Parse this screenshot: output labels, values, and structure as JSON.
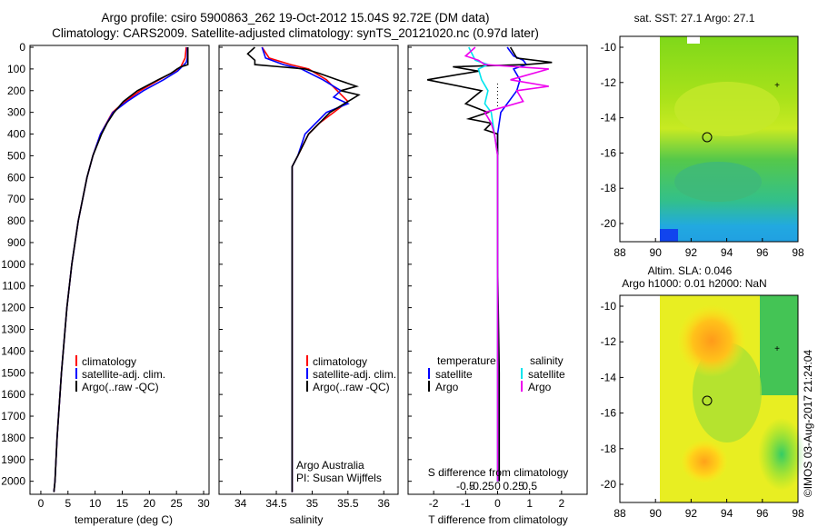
{
  "header": {
    "title_line1": "Argo profile: csiro 5900863_262 19-Oct-2012 15.04S 92.72E (DM data)",
    "title_line2": "Climatology: CARS2009. Satellite-adjusted climatology: synTS_20121020.nc (0.97d later)"
  },
  "colors": {
    "climatology": "#ff0000",
    "satellite": "#0000ff",
    "argo": "#000000",
    "salinity_satellite": "#00e5ee",
    "salinity_argo": "#ee00ee"
  },
  "pressure_ticks": [
    "0",
    "100",
    "200",
    "300",
    "400",
    "500",
    "600",
    "700",
    "800",
    "900",
    "1000",
    "1100",
    "1200",
    "1300",
    "1400",
    "1500",
    "1600",
    "1700",
    "1800",
    "1900",
    "2000"
  ],
  "legend": {
    "climatology": "climatology",
    "satellite_adj": "satellite-adj. clim.",
    "argo": "Argo(..raw -QC)"
  },
  "attribution": {
    "line1": "Argo Australia",
    "line2": "PI: Susan Wijffels"
  },
  "diff_legend": {
    "temperature_header": "temperature",
    "salinity_header": "salinity",
    "satellite": "satellite",
    "argo": "Argo"
  },
  "diff_axes": {
    "s_label": "S difference from climatology",
    "s_ticks": [
      "-0.5",
      "-0.25",
      "0",
      "0.25",
      "0.5"
    ],
    "t_label": "T difference from climatology",
    "t_ticks": [
      "-2",
      "-1",
      "0",
      "1",
      "2"
    ]
  },
  "maps": {
    "sst_title": "sat. SST: 27.1  Argo: 27.1",
    "sla_title_line1": "Altim. SLA: 0.046",
    "sla_title_line2": "Argo h1000: 0.01 h2000: NaN",
    "lat_ticks": [
      "-10",
      "-12",
      "-14",
      "-16",
      "-18",
      "-20"
    ],
    "lon_ticks": [
      "88",
      "90",
      "92",
      "94",
      "96",
      "98"
    ]
  },
  "side_label": "©IMOS 03-Aug-2017 21:24:04",
  "chart_data": [
    {
      "type": "line",
      "id": "temperature",
      "title": "",
      "xlabel": "temperature (deg C)",
      "ylabel": "",
      "xlim": [
        -2,
        31
      ],
      "ylim": [
        2060,
        0
      ],
      "xticks": [
        0,
        5,
        10,
        15,
        20,
        25,
        30
      ],
      "series": [
        {
          "name": "climatology",
          "color": "#ff0000",
          "p": [
            0,
            50,
            70,
            90,
            110,
            150,
            200,
            250,
            300,
            400,
            500,
            600,
            800,
            1000,
            1200,
            1500,
            1800,
            2000,
            2050
          ],
          "v": [
            26.8,
            26.6,
            26.2,
            25.8,
            24.7,
            21.8,
            18.3,
            15.5,
            13.2,
            11.0,
            9.6,
            8.5,
            6.9,
            5.7,
            4.8,
            3.8,
            3.0,
            2.6,
            2.4
          ]
        },
        {
          "name": "satellite-adj. clim.",
          "color": "#0000ff",
          "p": [
            0,
            50,
            70,
            90,
            110,
            150,
            200,
            250,
            300,
            400,
            500,
            600,
            800,
            1000,
            1200,
            1500,
            1800,
            2000,
            2050
          ],
          "v": [
            27.0,
            27.0,
            26.8,
            26.0,
            25.2,
            22.6,
            18.9,
            15.9,
            13.3,
            11.0,
            9.6,
            8.5,
            6.9,
            5.7,
            4.8,
            3.8,
            3.0,
            2.6,
            2.4
          ]
        },
        {
          "name": "Argo(..raw -QC)",
          "color": "#000000",
          "p": [
            0,
            80,
            85,
            90,
            100,
            120,
            150,
            200,
            250,
            300,
            350,
            400,
            500,
            600,
            800,
            1000,
            1200,
            1500,
            1800,
            2000,
            2050
          ],
          "v": [
            27.1,
            27.1,
            26.5,
            25.8,
            25.1,
            24.0,
            21.6,
            17.8,
            15.2,
            13.5,
            12.2,
            11.2,
            9.6,
            8.5,
            6.9,
            5.7,
            4.8,
            3.8,
            3.0,
            2.6,
            2.4
          ]
        }
      ]
    },
    {
      "type": "line",
      "id": "salinity",
      "title": "",
      "xlabel": "salinity",
      "ylabel": "",
      "xlim": [
        33.7,
        36.2
      ],
      "ylim": [
        2060,
        0
      ],
      "xticks": [
        34,
        34.5,
        35,
        35.5,
        36
      ],
      "series": [
        {
          "name": "climatology",
          "color": "#ff0000",
          "p": [
            0,
            50,
            80,
            100,
            150,
            200,
            250,
            300,
            350,
            400,
            500,
            550,
            600,
            800,
            1000,
            1500,
            2000,
            2050
          ],
          "v": [
            34.3,
            34.4,
            34.7,
            34.95,
            35.2,
            35.35,
            35.5,
            35.3,
            35.1,
            34.95,
            34.8,
            34.72,
            34.72,
            34.72,
            34.72,
            34.72,
            34.72,
            34.72
          ]
        },
        {
          "name": "satellite-adj. clim.",
          "color": "#0000ff",
          "p": [
            0,
            50,
            80,
            100,
            150,
            200,
            230,
            260,
            300,
            350,
            400,
            500,
            550,
            600,
            800,
            1000,
            1500,
            2000,
            2050
          ],
          "v": [
            34.3,
            34.35,
            34.6,
            34.85,
            35.15,
            35.4,
            35.3,
            35.5,
            35.2,
            35.05,
            34.9,
            34.8,
            34.72,
            34.72,
            34.72,
            34.72,
            34.72,
            34.72,
            34.72
          ]
        },
        {
          "name": "Argo(..raw -QC)",
          "color": "#000000",
          "p": [
            0,
            30,
            60,
            80,
            90,
            100,
            120,
            150,
            180,
            200,
            220,
            240,
            260,
            300,
            350,
            400,
            500,
            550,
            600,
            800,
            1000,
            1500,
            2000,
            2050
          ],
          "v": [
            34.2,
            34.1,
            34.2,
            34.2,
            34.55,
            34.9,
            35.1,
            35.35,
            35.62,
            35.4,
            35.65,
            35.55,
            35.45,
            35.25,
            35.1,
            34.95,
            34.8,
            34.72,
            34.72,
            34.72,
            34.72,
            34.72,
            34.72,
            34.72
          ]
        }
      ]
    },
    {
      "type": "line",
      "id": "difference",
      "title": "",
      "xlabel": "T difference from climatology",
      "ylabel": "",
      "xlim": [
        -2.8,
        2.8
      ],
      "ylim": [
        2060,
        0
      ],
      "xticks": [
        -2,
        -1,
        0,
        1,
        2
      ],
      "series": [
        {
          "name": "temperature satellite",
          "color": "#0000ff",
          "p": [
            0,
            40,
            60,
            80,
            100,
            150,
            200,
            300,
            400,
            500,
            700,
            1000,
            1500,
            2000
          ],
          "v": [
            0.3,
            0.5,
            0.8,
            0.9,
            0.5,
            0.7,
            0.6,
            0.1,
            0.0,
            0.0,
            0.0,
            0.0,
            0.0,
            0.0
          ]
        },
        {
          "name": "temperature Argo",
          "color": "#000000",
          "p": [
            0,
            50,
            70,
            80,
            90,
            110,
            150,
            200,
            260,
            300,
            330,
            350,
            380,
            400,
            500,
            700,
            1000,
            1500,
            2000
          ],
          "v": [
            0.4,
            0.6,
            1.7,
            0.9,
            -1.4,
            -0.6,
            -2.2,
            -0.5,
            -1.0,
            -0.3,
            -0.9,
            -0.2,
            -0.4,
            0.0,
            0.0,
            0.0,
            0.0,
            0.05,
            0.05
          ]
        },
        {
          "name": "salinity satellite",
          "color": "#00e5ee",
          "p": [
            0,
            60,
            80,
            100,
            150,
            200,
            260,
            300,
            400,
            500,
            700,
            1000,
            1500,
            2000
          ],
          "v": [
            -0.9,
            -0.7,
            -0.3,
            -0.6,
            -0.5,
            -0.3,
            -0.4,
            -0.2,
            -0.1,
            0.0,
            0.0,
            0.0,
            0.0,
            0.0
          ]
        },
        {
          "name": "salinity Argo",
          "color": "#ee00ee",
          "p": [
            0,
            40,
            60,
            80,
            100,
            150,
            180,
            200,
            250,
            300,
            350,
            400,
            500,
            600,
            800,
            1000,
            1500,
            2000
          ],
          "v": [
            -0.7,
            -1.0,
            -0.6,
            -0.4,
            1.6,
            0.4,
            1.6,
            0.6,
            0.8,
            -0.4,
            -0.2,
            -0.1,
            0.0,
            0.0,
            0.0,
            0.0,
            0.0,
            0.0
          ]
        }
      ]
    }
  ]
}
